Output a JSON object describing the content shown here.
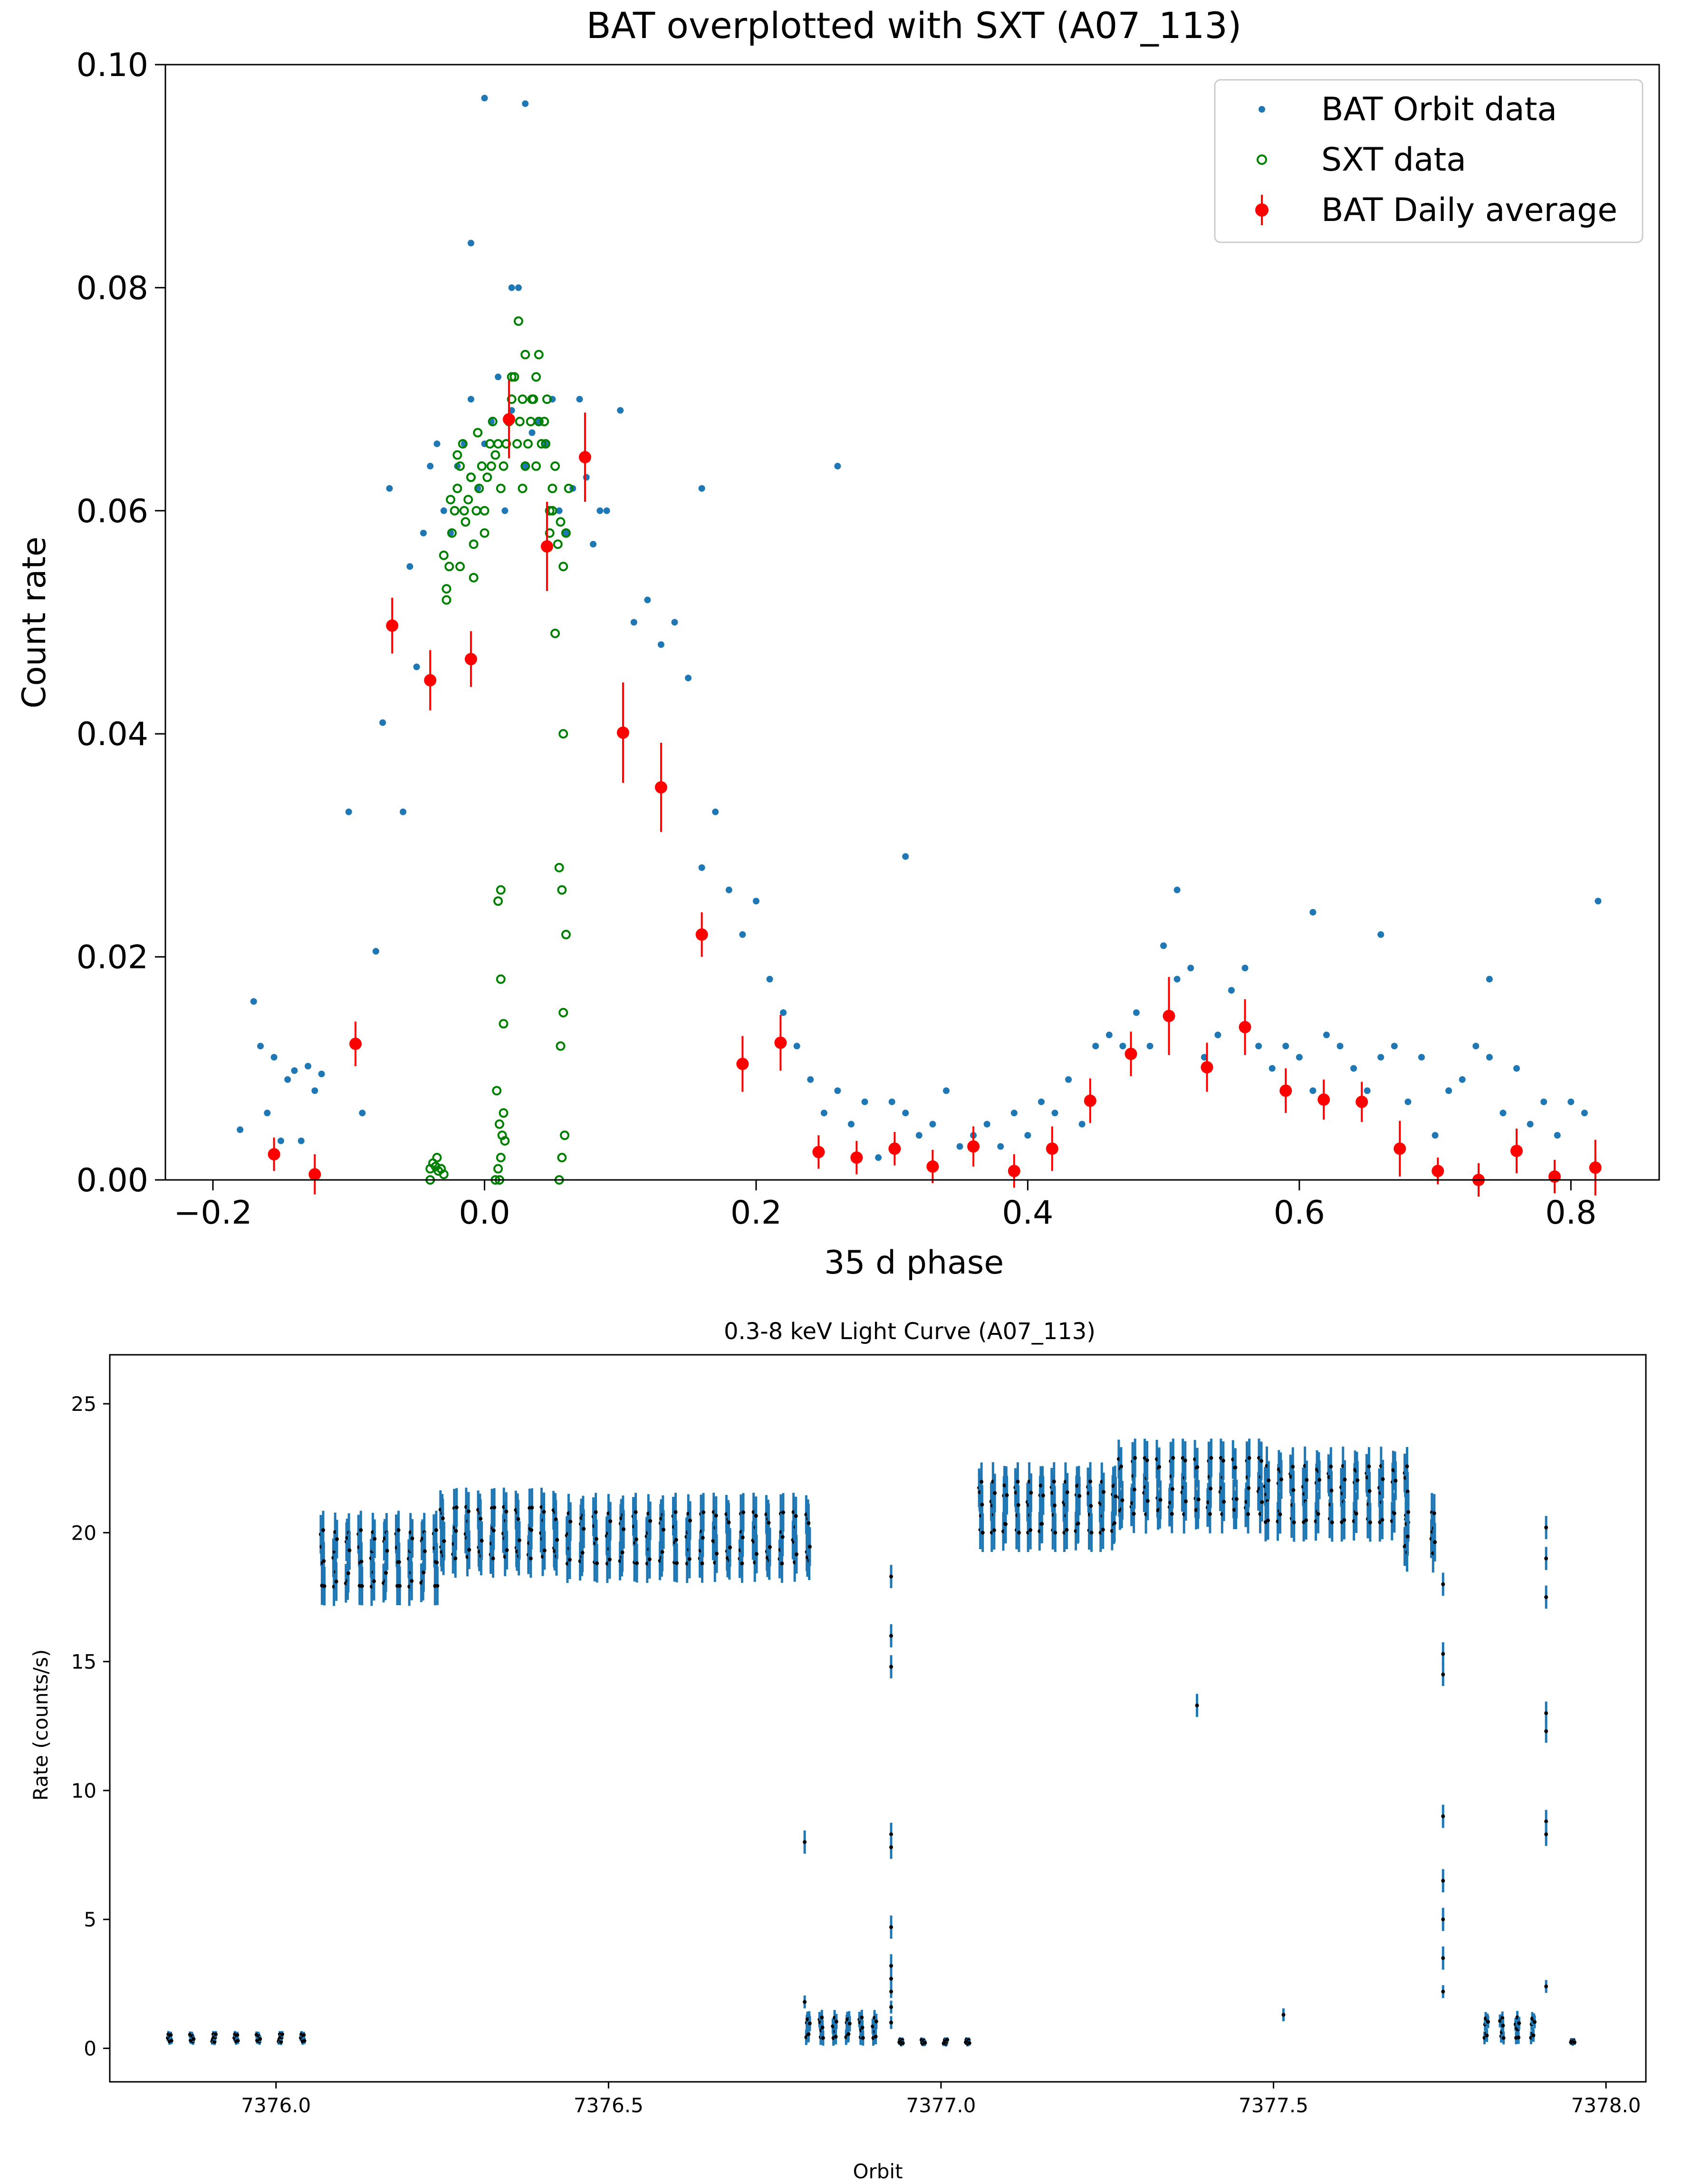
{
  "chart_data": [
    {
      "type": "scatter",
      "title": "BAT overplotted with SXT (A07_113)",
      "xlabel": "35 d phase",
      "ylabel": "Count rate",
      "xlim": [
        -0.235,
        0.865
      ],
      "ylim": [
        0.0,
        0.1
      ],
      "grid": false,
      "legend_position": "top-right",
      "xticks": [
        -0.2,
        0.0,
        0.2,
        0.4,
        0.6,
        0.8
      ],
      "xtick_labels": [
        "−0.2",
        "0.0",
        "0.2",
        "0.4",
        "0.6",
        "0.8"
      ],
      "yticks": [
        0.0,
        0.02,
        0.04,
        0.06,
        0.08,
        0.1
      ],
      "ytick_labels": [
        "0.00",
        "0.02",
        "0.04",
        "0.06",
        "0.08",
        "0.10"
      ],
      "series": [
        {
          "name": "BAT Orbit data",
          "style": "dot",
          "color": "#1f77b4",
          "x": [
            -0.18,
            -0.17,
            -0.165,
            -0.16,
            -0.155,
            -0.15,
            -0.145,
            -0.14,
            -0.135,
            -0.13,
            -0.125,
            -0.12,
            -0.1,
            -0.09,
            -0.08,
            -0.075,
            -0.07,
            -0.06,
            -0.055,
            -0.05,
            -0.045,
            -0.04,
            -0.035,
            -0.03,
            -0.025,
            -0.02,
            -0.015,
            -0.01,
            -0.005,
            0.0,
            0.005,
            0.01,
            0.015,
            0.02,
            0.025,
            0.03,
            0.035,
            0.04,
            0.045,
            0.05,
            0.055,
            0.06,
            0.065,
            0.07,
            0.075,
            0.08,
            0.085,
            0.09,
            0.1,
            0.11,
            0.12,
            0.13,
            0.14,
            0.15,
            0.16,
            0.17,
            0.18,
            0.19,
            0.2,
            0.21,
            0.22,
            0.23,
            0.24,
            0.25,
            0.26,
            0.27,
            0.28,
            0.29,
            0.3,
            0.31,
            0.32,
            0.33,
            0.34,
            0.35,
            0.36,
            0.37,
            0.38,
            0.39,
            0.4,
            0.41,
            0.42,
            0.43,
            0.44,
            0.45,
            0.46,
            0.47,
            0.48,
            0.49,
            0.5,
            0.51,
            0.52,
            0.53,
            0.54,
            0.55,
            0.56,
            0.57,
            0.58,
            0.59,
            0.6,
            0.61,
            0.62,
            0.63,
            0.64,
            0.65,
            0.66,
            0.67,
            0.68,
            0.69,
            0.7,
            0.71,
            0.72,
            0.73,
            0.74,
            0.75,
            0.76,
            0.77,
            0.78,
            0.79,
            0.8,
            0.81,
            0.82,
            0.26,
            0.0,
            0.03,
            -0.01,
            0.02,
            0.16,
            0.31,
            0.51,
            0.61,
            0.66,
            0.74,
            0.82
          ],
          "y": [
            0.0045,
            0.016,
            0.012,
            0.006,
            0.011,
            0.0035,
            0.009,
            0.0098,
            0.0035,
            0.0102,
            0.008,
            0.0095,
            0.033,
            0.006,
            0.0205,
            0.041,
            0.062,
            0.033,
            0.055,
            0.046,
            0.058,
            0.064,
            0.066,
            0.06,
            0.058,
            0.064,
            0.066,
            0.07,
            0.062,
            0.066,
            0.068,
            0.072,
            0.06,
            0.069,
            0.08,
            0.064,
            0.067,
            0.068,
            0.066,
            0.07,
            0.06,
            0.058,
            0.062,
            0.07,
            0.063,
            0.057,
            0.06,
            0.06,
            0.069,
            0.05,
            0.052,
            0.048,
            0.05,
            0.045,
            0.028,
            0.033,
            0.026,
            0.022,
            0.025,
            0.018,
            0.015,
            0.012,
            0.009,
            0.006,
            0.008,
            0.005,
            0.007,
            0.002,
            0.007,
            0.006,
            0.004,
            0.005,
            0.008,
            0.003,
            0.004,
            0.005,
            0.003,
            0.006,
            0.004,
            0.007,
            0.006,
            0.009,
            0.005,
            0.012,
            0.013,
            0.012,
            0.015,
            0.012,
            0.021,
            0.018,
            0.019,
            0.011,
            0.013,
            0.017,
            0.019,
            0.012,
            0.01,
            0.012,
            0.011,
            0.008,
            0.013,
            0.012,
            0.01,
            0.008,
            0.011,
            0.012,
            0.007,
            0.011,
            0.004,
            0.008,
            0.009,
            0.012,
            0.011,
            0.006,
            0.01,
            0.005,
            0.007,
            0.004,
            0.007,
            0.006,
            0.001,
            0.064,
            0.097,
            0.0965,
            0.084,
            0.08,
            0.062,
            0.029,
            0.026,
            0.024,
            0.022,
            0.018,
            0.025
          ]
        },
        {
          "name": "SXT data",
          "style": "open-circle",
          "color": "#008000",
          "x": [
            -0.04,
            -0.038,
            -0.036,
            -0.034,
            -0.032,
            -0.03,
            -0.028,
            -0.026,
            -0.024,
            -0.022,
            -0.02,
            -0.018,
            -0.016,
            -0.014,
            -0.012,
            -0.01,
            -0.008,
            -0.006,
            -0.004,
            -0.002,
            0.0,
            0.002,
            0.004,
            0.006,
            0.008,
            0.01,
            0.012,
            0.014,
            0.016,
            0.018,
            0.02,
            0.022,
            0.024,
            0.026,
            0.028,
            0.03,
            0.032,
            0.034,
            0.036,
            0.038,
            0.04,
            0.042,
            0.044,
            0.046,
            0.048,
            0.05,
            0.052,
            0.054,
            0.056,
            0.058,
            0.06,
            0.062,
            -0.03,
            -0.025,
            -0.02,
            -0.015,
            -0.01,
            -0.005,
            0.0,
            0.005,
            0.02,
            0.025,
            0.03,
            0.035,
            0.04,
            0.045,
            0.05,
            -0.028,
            -0.018,
            -0.008,
            0.028,
            0.038,
            0.048,
            0.008,
            0.01,
            0.012,
            0.014,
            0.01,
            0.012,
            0.055,
            0.057,
            0.059,
            0.055,
            0.057,
            0.06,
            0.058,
            0.056,
            0.012,
            0.014,
            0.009,
            0.011,
            0.013,
            0.015,
            -0.04,
            -0.035,
            -0.032,
            0.011,
            0.058,
            0.052
          ],
          "y": [
            0.001,
            0.0015,
            0.0012,
            0.0008,
            0.001,
            0.0005,
            0.053,
            0.055,
            0.058,
            0.06,
            0.062,
            0.064,
            0.066,
            0.059,
            0.061,
            0.063,
            0.057,
            0.06,
            0.062,
            0.064,
            0.058,
            0.063,
            0.066,
            0.068,
            0.065,
            0.066,
            0.062,
            0.064,
            0.066,
            0.068,
            0.07,
            0.072,
            0.066,
            0.068,
            0.07,
            0.064,
            0.066,
            0.068,
            0.07,
            0.072,
            0.074,
            0.066,
            0.068,
            0.07,
            0.06,
            0.062,
            0.064,
            0.057,
            0.059,
            0.055,
            0.058,
            0.062,
            0.056,
            0.061,
            0.065,
            0.06,
            0.063,
            0.067,
            0.06,
            0.064,
            0.072,
            0.077,
            0.074,
            0.07,
            0.068,
            0.066,
            0.06,
            0.052,
            0.055,
            0.054,
            0.062,
            0.064,
            0.058,
            0.0,
            0.001,
            0.002,
            0.006,
            0.025,
            0.026,
            0.0,
            0.002,
            0.004,
            0.028,
            0.026,
            0.022,
            0.015,
            0.012,
            0.018,
            0.014,
            0.008,
            0.005,
            0.004,
            0.0035,
            0.0,
            0.002,
            0.001,
            0.0,
            0.04,
            0.049
          ]
        },
        {
          "name": "BAT Daily average",
          "style": "errorbar",
          "color": "#ff0000",
          "x": [
            -0.155,
            -0.125,
            -0.095,
            -0.068,
            -0.04,
            -0.01,
            0.018,
            0.046,
            0.074,
            0.102,
            0.13,
            0.16,
            0.19,
            0.218,
            0.246,
            0.274,
            0.302,
            0.33,
            0.36,
            0.39,
            0.418,
            0.446,
            0.476,
            0.504,
            0.532,
            0.56,
            0.59,
            0.618,
            0.646,
            0.674,
            0.702,
            0.732,
            0.76,
            0.788,
            0.818
          ],
          "y": [
            0.0023,
            0.0005,
            0.0122,
            0.0497,
            0.0448,
            0.0467,
            0.0682,
            0.0568,
            0.0648,
            0.0401,
            0.0352,
            0.022,
            0.0104,
            0.0123,
            0.0025,
            0.002,
            0.0028,
            0.0012,
            0.003,
            0.0008,
            0.0028,
            0.0071,
            0.0113,
            0.0147,
            0.0101,
            0.0137,
            0.008,
            0.0072,
            0.007,
            0.0028,
            0.0008,
            0.0,
            0.0026,
            0.0003,
            0.0011
          ],
          "yerr": [
            0.0015,
            0.0018,
            0.002,
            0.0025,
            0.0027,
            0.0025,
            0.0035,
            0.004,
            0.004,
            0.0045,
            0.004,
            0.002,
            0.0025,
            0.0025,
            0.0015,
            0.0015,
            0.0015,
            0.0015,
            0.0018,
            0.0015,
            0.002,
            0.002,
            0.002,
            0.0035,
            0.0022,
            0.0025,
            0.002,
            0.0018,
            0.0018,
            0.0025,
            0.0012,
            0.0015,
            0.002,
            0.0015,
            0.0025
          ]
        }
      ]
    },
    {
      "type": "scatter",
      "title": "0.3-8 keV Light Curve (A07_113)",
      "xlabel": "Orbit",
      "ylabel": "Rate (counts/s)",
      "xlim": [
        7375.75,
        7378.06
      ],
      "ylim": [
        -1.3,
        26.9
      ],
      "grid": false,
      "xticks": [
        7376.0,
        7376.5,
        7377.0,
        7377.5,
        7378.0
      ],
      "xtick_labels": [
        "7376.0",
        "7376.5",
        "7377.0",
        "7377.5",
        "7378.0"
      ],
      "yticks": [
        0,
        5,
        10,
        15,
        20,
        25
      ],
      "ytick_labels": [
        "0",
        "5",
        "10",
        "15",
        "20",
        "25"
      ],
      "color": "#1f77b4",
      "marker_color": "#000000",
      "segments": [
        {
          "x_start": 7375.84,
          "x_end": 7376.04,
          "level": 0.4,
          "spread": 0.15,
          "count": 7,
          "err": 0.25
        },
        {
          "x_start": 7376.07,
          "x_end": 7376.24,
          "level": 19.0,
          "spread": 1.1,
          "count": 10,
          "err": 1.5
        },
        {
          "x_start": 7376.25,
          "x_end": 7376.42,
          "level": 20.0,
          "spread": 1.0,
          "count": 10,
          "err": 1.5
        },
        {
          "x_start": 7376.44,
          "x_end": 7376.62,
          "level": 19.8,
          "spread": 1.0,
          "count": 10,
          "err": 1.5
        },
        {
          "x_start": 7376.64,
          "x_end": 7376.8,
          "level": 19.8,
          "spread": 1.0,
          "count": 9,
          "err": 1.5
        },
        {
          "x_start": 7376.8,
          "x_end": 7376.9,
          "level": 0.8,
          "spread": 0.4,
          "count": 6,
          "err": 0.6
        },
        {
          "x_start": 7376.94,
          "x_end": 7377.04,
          "level": 0.25,
          "spread": 0.08,
          "count": 4,
          "err": 0.2
        },
        {
          "x_start": 7377.06,
          "x_end": 7377.26,
          "level": 21.0,
          "spread": 1.0,
          "count": 12,
          "err": 1.5
        },
        {
          "x_start": 7377.27,
          "x_end": 7377.48,
          "level": 21.8,
          "spread": 1.1,
          "count": 12,
          "err": 1.5
        },
        {
          "x_start": 7377.49,
          "x_end": 7377.7,
          "level": 21.5,
          "spread": 1.1,
          "count": 12,
          "err": 1.5
        },
        {
          "x_start": 7377.7,
          "x_end": 7377.74,
          "level": 20.0,
          "spread": 0.8,
          "count": 2,
          "err": 1.5
        },
        {
          "x_start": 7377.82,
          "x_end": 7377.89,
          "level": 0.8,
          "spread": 0.4,
          "count": 4,
          "err": 0.5
        },
        {
          "x_start": 7377.95,
          "x_end": 7377.95,
          "level": 0.25,
          "spread": 0.05,
          "count": 1,
          "err": 0.2
        }
      ],
      "transitions": [
        {
          "x": 7376.795,
          "y": [
            1.8,
            8.0
          ]
        },
        {
          "x": 7376.925,
          "y": [
            18.3,
            16.0,
            14.8,
            8.3,
            7.8,
            4.7,
            3.2,
            2.7,
            2.2,
            1.6,
            1.0
          ]
        },
        {
          "x": 7377.385,
          "y": [
            13.3
          ]
        },
        {
          "x": 7377.515,
          "y": [
            1.3
          ]
        },
        {
          "x": 7377.755,
          "y": [
            18.0,
            15.3,
            14.5,
            9.0,
            6.5,
            5.0,
            3.5,
            2.2
          ]
        },
        {
          "x": 7377.91,
          "y": [
            20.2,
            19.0,
            17.5,
            13.0,
            12.3,
            8.8,
            8.3,
            2.4
          ]
        }
      ]
    }
  ]
}
